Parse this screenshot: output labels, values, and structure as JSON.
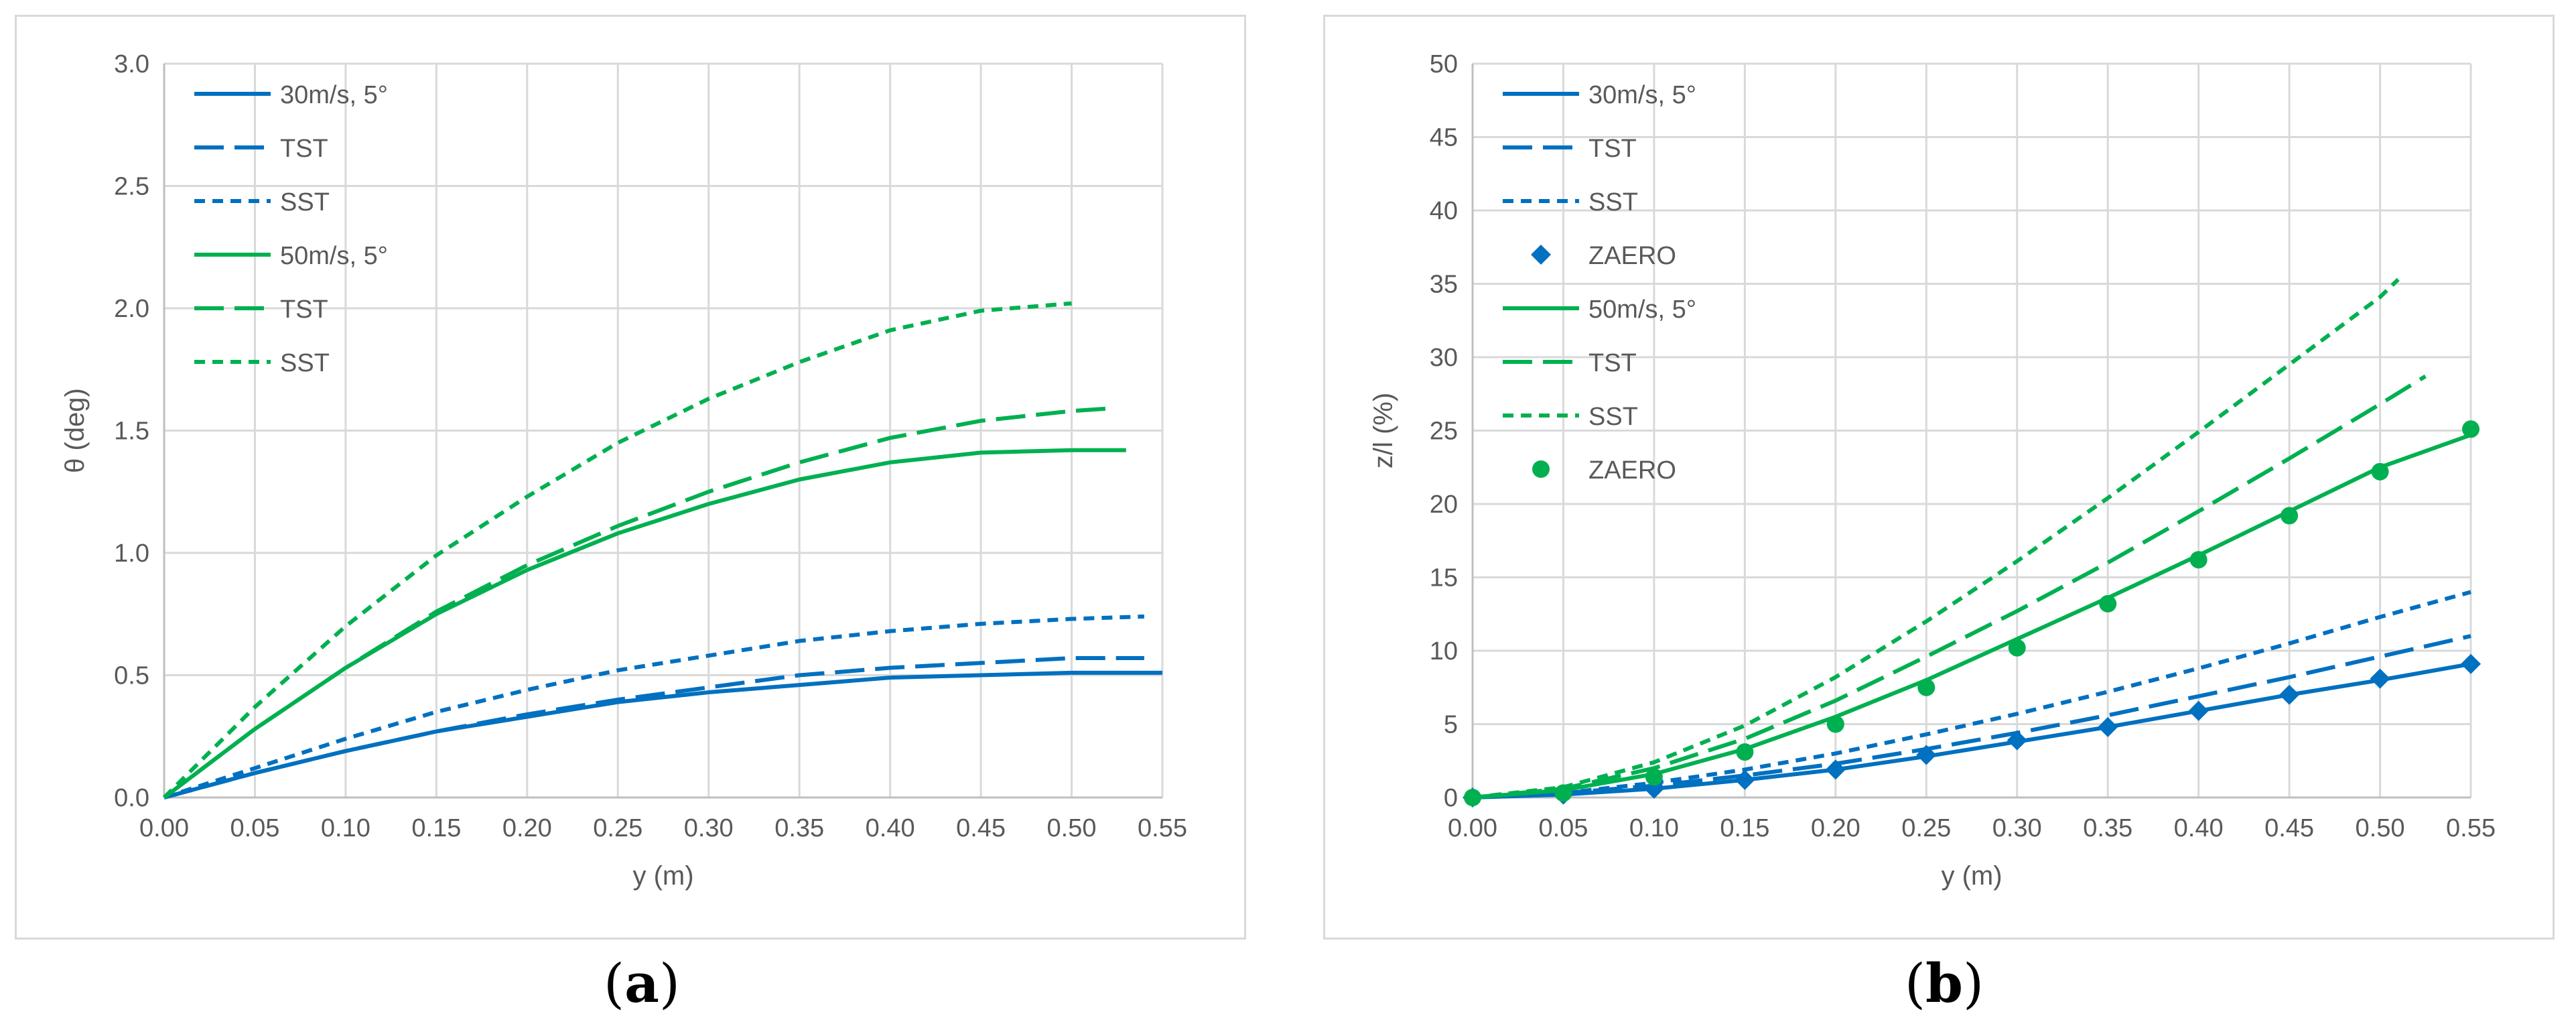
{
  "panels": [
    {
      "id": "a",
      "caption_open": "(",
      "caption_letter": "a",
      "caption_close": ")"
    },
    {
      "id": "b",
      "caption_open": "(",
      "caption_letter": "b",
      "caption_close": ")"
    }
  ],
  "chart_data": [
    {
      "type": "line",
      "title": "",
      "xlabel": "y (m)",
      "ylabel": "θ (deg)",
      "xlim": [
        0,
        0.55
      ],
      "ylim": [
        0,
        3.0
      ],
      "xticks": [
        "0.00",
        "0.05",
        "0.10",
        "0.15",
        "0.20",
        "0.25",
        "0.30",
        "0.35",
        "0.40",
        "0.45",
        "0.50",
        "0.55"
      ],
      "yticks": [
        "0.0",
        "0.5",
        "1.0",
        "1.5",
        "2.0",
        "2.5",
        "3.0"
      ],
      "grid": true,
      "legend_position": "top-left",
      "series": [
        {
          "name": "30m/s, 5°",
          "color": "#0070c0",
          "style": "solid",
          "x": [
            0,
            0.05,
            0.1,
            0.15,
            0.2,
            0.25,
            0.3,
            0.35,
            0.4,
            0.45,
            0.5,
            0.55
          ],
          "y": [
            0,
            0.1,
            0.19,
            0.27,
            0.33,
            0.39,
            0.43,
            0.46,
            0.49,
            0.5,
            0.51,
            0.51
          ]
        },
        {
          "name": "TST",
          "color": "#0070c0",
          "style": "longdash",
          "x": [
            0,
            0.05,
            0.1,
            0.15,
            0.2,
            0.25,
            0.3,
            0.35,
            0.4,
            0.45,
            0.5,
            0.54
          ],
          "y": [
            0,
            0.1,
            0.19,
            0.27,
            0.34,
            0.4,
            0.45,
            0.5,
            0.53,
            0.55,
            0.57,
            0.57
          ]
        },
        {
          "name": "SST",
          "color": "#0070c0",
          "style": "shortdash",
          "x": [
            0,
            0.05,
            0.1,
            0.15,
            0.2,
            0.25,
            0.3,
            0.35,
            0.4,
            0.45,
            0.5,
            0.54
          ],
          "y": [
            0,
            0.12,
            0.24,
            0.35,
            0.44,
            0.52,
            0.58,
            0.64,
            0.68,
            0.71,
            0.73,
            0.74
          ]
        },
        {
          "name": "50m/s, 5°",
          "color": "#00b050",
          "style": "solid",
          "x": [
            0,
            0.05,
            0.1,
            0.15,
            0.2,
            0.25,
            0.3,
            0.35,
            0.4,
            0.45,
            0.5,
            0.53
          ],
          "y": [
            0,
            0.28,
            0.53,
            0.75,
            0.93,
            1.08,
            1.2,
            1.3,
            1.37,
            1.41,
            1.42,
            1.42
          ]
        },
        {
          "name": "TST",
          "color": "#00b050",
          "style": "longdash",
          "x": [
            0,
            0.05,
            0.1,
            0.15,
            0.2,
            0.25,
            0.3,
            0.35,
            0.4,
            0.45,
            0.5,
            0.52
          ],
          "y": [
            0,
            0.28,
            0.53,
            0.76,
            0.95,
            1.11,
            1.25,
            1.37,
            1.47,
            1.54,
            1.58,
            1.59
          ]
        },
        {
          "name": "SST",
          "color": "#00b050",
          "style": "shortdash",
          "x": [
            0,
            0.05,
            0.1,
            0.15,
            0.2,
            0.25,
            0.3,
            0.35,
            0.4,
            0.45,
            0.5
          ],
          "y": [
            0,
            0.37,
            0.7,
            0.99,
            1.23,
            1.45,
            1.63,
            1.78,
            1.91,
            1.99,
            2.02
          ]
        }
      ]
    },
    {
      "type": "line",
      "title": "",
      "xlabel": "y (m)",
      "ylabel": "z/l (%)",
      "xlim": [
        0,
        0.55
      ],
      "ylim": [
        0,
        50
      ],
      "xticks": [
        "0.00",
        "0.05",
        "0.10",
        "0.15",
        "0.20",
        "0.25",
        "0.30",
        "0.35",
        "0.40",
        "0.45",
        "0.50",
        "0.55"
      ],
      "yticks": [
        "0",
        "5",
        "10",
        "15",
        "20",
        "25",
        "30",
        "35",
        "40",
        "45",
        "50"
      ],
      "grid": true,
      "legend_position": "top-left",
      "series": [
        {
          "name": "30m/s, 5°",
          "color": "#0070c0",
          "style": "solid",
          "x": [
            0,
            0.05,
            0.1,
            0.15,
            0.2,
            0.25,
            0.3,
            0.35,
            0.4,
            0.45,
            0.5,
            0.55
          ],
          "y": [
            0,
            0.2,
            0.6,
            1.2,
            1.9,
            2.8,
            3.8,
            4.8,
            5.9,
            7.0,
            8.0,
            9.1
          ]
        },
        {
          "name": "TST",
          "color": "#0070c0",
          "style": "longdash",
          "x": [
            0,
            0.05,
            0.1,
            0.15,
            0.2,
            0.25,
            0.3,
            0.35,
            0.4,
            0.45,
            0.5,
            0.55
          ],
          "y": [
            0,
            0.3,
            0.8,
            1.5,
            2.3,
            3.3,
            4.4,
            5.6,
            6.9,
            8.2,
            9.6,
            11.0
          ]
        },
        {
          "name": "SST",
          "color": "#0070c0",
          "style": "shortdash",
          "x": [
            0,
            0.05,
            0.1,
            0.15,
            0.2,
            0.25,
            0.3,
            0.35,
            0.4,
            0.45,
            0.5,
            0.55
          ],
          "y": [
            0,
            0.3,
            1.0,
            1.9,
            3.0,
            4.3,
            5.7,
            7.2,
            8.8,
            10.5,
            12.3,
            14.0
          ]
        },
        {
          "name": "ZAERO",
          "color": "#0070c0",
          "style": "marker-diamond",
          "x": [
            0,
            0.05,
            0.1,
            0.15,
            0.2,
            0.25,
            0.3,
            0.35,
            0.4,
            0.45,
            0.5,
            0.55
          ],
          "y": [
            0,
            0.2,
            0.6,
            1.2,
            1.9,
            2.9,
            3.9,
            4.8,
            5.9,
            7.0,
            8.1,
            9.1
          ]
        },
        {
          "name": "50m/s, 5°",
          "color": "#00b050",
          "style": "solid",
          "x": [
            0,
            0.05,
            0.1,
            0.15,
            0.2,
            0.25,
            0.3,
            0.35,
            0.4,
            0.45,
            0.5,
            0.55
          ],
          "y": [
            0,
            0.5,
            1.6,
            3.3,
            5.5,
            8.0,
            10.8,
            13.6,
            16.5,
            19.5,
            22.5,
            24.7
          ]
        },
        {
          "name": "TST",
          "color": "#00b050",
          "style": "longdash",
          "x": [
            0,
            0.05,
            0.1,
            0.15,
            0.2,
            0.25,
            0.3,
            0.35,
            0.4,
            0.45,
            0.5,
            0.525
          ],
          "y": [
            0,
            0.6,
            2.0,
            4.0,
            6.6,
            9.6,
            12.7,
            16.0,
            19.5,
            23.1,
            26.8,
            28.7
          ]
        },
        {
          "name": "SST",
          "color": "#00b050",
          "style": "shortdash",
          "x": [
            0,
            0.05,
            0.1,
            0.15,
            0.2,
            0.25,
            0.3,
            0.35,
            0.4,
            0.45,
            0.5,
            0.51
          ],
          "y": [
            0,
            0.7,
            2.4,
            4.9,
            8.2,
            12.0,
            16.1,
            20.4,
            24.9,
            29.5,
            34.1,
            35.3
          ]
        },
        {
          "name": "ZAERO",
          "color": "#00b050",
          "style": "marker-circle",
          "x": [
            0,
            0.05,
            0.1,
            0.15,
            0.2,
            0.25,
            0.3,
            0.35,
            0.4,
            0.45,
            0.5,
            0.55
          ],
          "y": [
            0,
            0.3,
            1.4,
            3.1,
            5.0,
            7.5,
            10.2,
            13.2,
            16.2,
            19.2,
            22.2,
            25.1
          ]
        }
      ]
    }
  ]
}
